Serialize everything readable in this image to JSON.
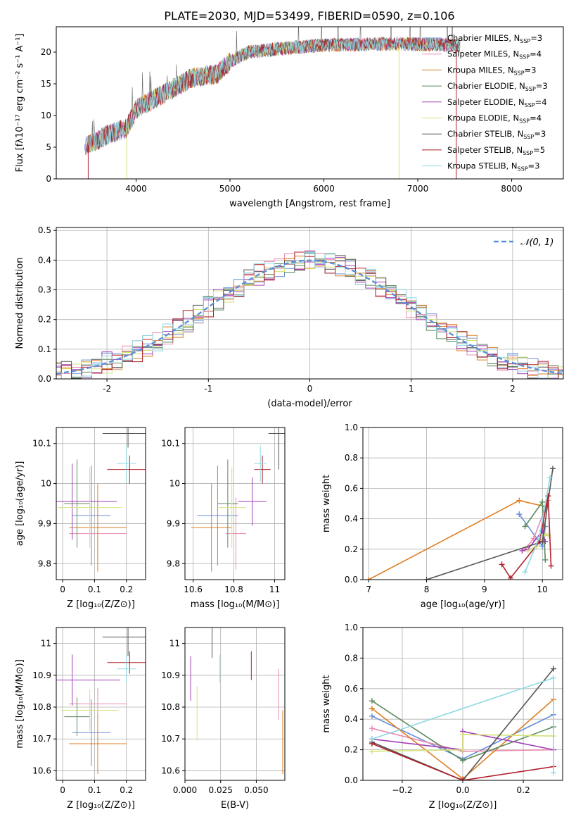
{
  "title": "PLATE=2030, MJD=53499, FIBERID=0590, z=0.106",
  "colors": {
    "Chabrier MILES": "#6a8fd8",
    "Salpeter MILES": "#e98bb0",
    "Kroupa MILES": "#e07e22",
    "Chabrier ELODIE": "#5e8a5e",
    "Salpeter ELODIE": "#a23fb6",
    "Kroupa ELODIE": "#d4e27a",
    "Chabrier STELIB": "#555555",
    "Salpeter STELIB": "#b0202a",
    "Kroupa STELIB": "#8ed9e3"
  },
  "chart_data": [
    {
      "type": "line",
      "panel": "spectrum",
      "xlabel": "wavelength [Angstrom, rest frame]",
      "ylabel": "Flux [fλ10⁻¹⁷ erg cm⁻² s⁻¹ A⁻¹]",
      "xlim": [
        3150,
        8550
      ],
      "ylim": [
        0,
        24
      ],
      "xticks": [
        4000,
        5000,
        6000,
        7000,
        8000
      ],
      "yticks": [
        0,
        5,
        10,
        15,
        20
      ],
      "legend_position": "top-right",
      "legend": [
        {
          "label": "Chabrier MILES, N",
          "sub": "SSP",
          "n": "=3"
        },
        {
          "label": "Salpeter MILES, N",
          "sub": "SSP",
          "n": "=4"
        },
        {
          "label": "Kroupa MILES, N",
          "sub": "SSP",
          "n": "=3"
        },
        {
          "label": "Chabrier ELODIE, N",
          "sub": "SSP",
          "n": "=3"
        },
        {
          "label": "Salpeter ELODIE, N",
          "sub": "SSP",
          "n": "=4"
        },
        {
          "label": "Kroupa ELODIE, N",
          "sub": "SSP",
          "n": "=4"
        },
        {
          "label": "Chabrier STELIB, N",
          "sub": "SSP",
          "n": "=3"
        },
        {
          "label": "Salpeter STELIB, N",
          "sub": "SSP",
          "n": "=5"
        },
        {
          "label": "Kroupa STELIB, N",
          "sub": "SSP",
          "n": "=3"
        }
      ],
      "model_anchor": {
        "x": [
          3450,
          3700,
          3900,
          4000,
          4300,
          4600,
          4860,
          5000,
          5200,
          5500,
          5900,
          6300,
          6700,
          7200,
          7450
        ],
        "y": [
          5.0,
          7.0,
          8.0,
          11.0,
          13.5,
          16.0,
          16.5,
          18.5,
          20.0,
          20.5,
          21.0,
          21.2,
          21.3,
          21.2,
          21.0
        ]
      }
    },
    {
      "type": "line",
      "panel": "residual-histogram",
      "xlabel": "(data-model)/error",
      "ylabel": "Normed distribution",
      "xlim": [
        -2.5,
        2.5
      ],
      "ylim": [
        0,
        0.51
      ],
      "xticks": [
        -2,
        -1,
        0,
        1,
        2
      ],
      "yticks": [
        0.0,
        0.1,
        0.2,
        0.3,
        0.4,
        0.5
      ],
      "grid": true,
      "legend_position": "top-right",
      "legend": "𝒩(0, 1)",
      "bin_width": 0.1
    },
    {
      "type": "scatter",
      "panel": "age-vs-Z",
      "xlabel": "Z [log₁₀(Z/Z⊙)]",
      "ylabel": "age  [log₁₀(age/yr)]",
      "xlim": [
        -0.02,
        0.26
      ],
      "ylim": [
        9.76,
        10.14
      ],
      "xticks": [
        0.0,
        0.1,
        0.2
      ],
      "yticks": [
        9.8,
        9.9,
        10.0,
        10.1
      ],
      "grid": true,
      "points": [
        {
          "model": "Chabrier MILES",
          "x": 0.09,
          "xerr": 0.06,
          "y": 9.92,
          "yerr": 0.125
        },
        {
          "model": "Salpeter MILES",
          "x": 0.11,
          "xerr": 0.09,
          "y": 9.875,
          "yerr": 0.08
        },
        {
          "model": "Kroupa MILES",
          "x": 0.11,
          "xerr": 0.09,
          "y": 9.89,
          "yerr": 0.11
        },
        {
          "model": "Chabrier ELODIE",
          "x": 0.045,
          "xerr": 0.04,
          "y": 9.95,
          "yerr": 0.11
        },
        {
          "model": "Salpeter ELODIE",
          "x": 0.03,
          "xerr": 0.14,
          "y": 9.955,
          "yerr": 0.095
        },
        {
          "model": "Kroupa ELODIE",
          "x": 0.085,
          "xerr": 0.1,
          "y": 9.94,
          "yerr": 0.1
        },
        {
          "model": "Chabrier STELIB",
          "x": 0.205,
          "xerr": 0.08,
          "y": 10.125,
          "yerr": 0.035
        },
        {
          "model": "Salpeter STELIB",
          "x": 0.21,
          "xerr": 0.07,
          "y": 10.035,
          "yerr": 0.035
        },
        {
          "model": "Kroupa STELIB",
          "x": 0.2,
          "xerr": 0.03,
          "y": 10.05,
          "yerr": 0.045
        }
      ]
    },
    {
      "type": "scatter",
      "panel": "age-vs-mass",
      "xlabel": "mass [log₁₀(M/M⊙)]",
      "ylabel": "",
      "xlim": [
        10.56,
        11.05
      ],
      "ylim": [
        9.76,
        10.14
      ],
      "xticks": [
        10.6,
        10.8,
        11.0
      ],
      "yticks": [
        9.8,
        9.9,
        10.0,
        10.1
      ],
      "grid": true,
      "points": [
        {
          "model": "Chabrier MILES",
          "x": 10.72,
          "xerr": 0.1,
          "y": 9.92,
          "yerr": 0.125
        },
        {
          "model": "Salpeter MILES",
          "x": 10.81,
          "xerr": 0.05,
          "y": 9.875,
          "yerr": 0.09
        },
        {
          "model": "Kroupa MILES",
          "x": 10.69,
          "xerr": 0.1,
          "y": 9.89,
          "yerr": 0.11
        },
        {
          "model": "Chabrier ELODIE",
          "x": 10.77,
          "xerr": 0.05,
          "y": 9.95,
          "yerr": 0.11
        },
        {
          "model": "Salpeter ELODIE",
          "x": 10.89,
          "xerr": 0.07,
          "y": 9.955,
          "yerr": 0.06
        },
        {
          "model": "Kroupa ELODIE",
          "x": 10.79,
          "xerr": 0.07,
          "y": 9.94,
          "yerr": 0.1
        },
        {
          "model": "Chabrier STELIB",
          "x": 11.02,
          "xerr": 0.05,
          "y": 10.125,
          "yerr": 0.09
        },
        {
          "model": "Salpeter STELIB",
          "x": 10.94,
          "xerr": 0.04,
          "y": 10.035,
          "yerr": 0.035
        },
        {
          "model": "Kroupa STELIB",
          "x": 10.93,
          "xerr": 0.03,
          "y": 10.05,
          "yerr": 0.045
        }
      ]
    },
    {
      "type": "line",
      "panel": "mass-weight-vs-age",
      "xlabel": "age  [log₁₀(age/yr)]",
      "ylabel": "mass weight",
      "xlim": [
        6.9,
        10.35
      ],
      "ylim": [
        0,
        1
      ],
      "xticks": [
        7,
        8,
        9,
        10
      ],
      "yticks": [
        0.0,
        0.2,
        0.4,
        0.6,
        0.8,
        1.0
      ],
      "grid": true,
      "series": [
        {
          "model": "Chabrier MILES",
          "x": [
            9.6,
            10.0,
            10.05
          ],
          "y": [
            0.43,
            0.22,
            0.35
          ]
        },
        {
          "model": "Salpeter MILES",
          "x": [
            9.7,
            9.85,
            10.1
          ],
          "y": [
            0.2,
            0.27,
            0.52
          ]
        },
        {
          "model": "Kroupa MILES",
          "x": [
            7.0,
            9.6,
            10.05
          ],
          "y": [
            0.0,
            0.52,
            0.48
          ]
        },
        {
          "model": "Chabrier ELODIE",
          "x": [
            9.7,
            10.0,
            10.05
          ],
          "y": [
            0.35,
            0.51,
            0.13
          ]
        },
        {
          "model": "Salpeter ELODIE",
          "x": [
            9.65,
            9.75,
            10.0,
            10.05
          ],
          "y": [
            0.19,
            0.2,
            0.32,
            0.25
          ]
        },
        {
          "model": "Kroupa ELODIE",
          "x": [
            9.75,
            9.9,
            10.05,
            10.1
          ],
          "y": [
            0.19,
            0.22,
            0.3,
            0.29
          ]
        },
        {
          "model": "Chabrier STELIB",
          "x": [
            8.0,
            10.0,
            10.18
          ],
          "y": [
            0.0,
            0.25,
            0.73
          ]
        },
        {
          "model": "Salpeter STELIB",
          "x": [
            9.3,
            9.45,
            9.95,
            10.1,
            10.15
          ],
          "y": [
            0.1,
            0.01,
            0.25,
            0.55,
            0.09
          ]
        },
        {
          "model": "Kroupa STELIB",
          "x": [
            9.7,
            9.95,
            10.13
          ],
          "y": [
            0.05,
            0.28,
            0.67
          ]
        }
      ]
    },
    {
      "type": "scatter",
      "panel": "mass-vs-Z",
      "xlabel": "Z [log₁₀(Z/Z⊙)]",
      "ylabel": "mass [log₁₀(M/M⊙)]",
      "xlim": [
        -0.02,
        0.26
      ],
      "ylim": [
        10.57,
        11.05
      ],
      "xticks": [
        0.0,
        0.1,
        0.2
      ],
      "yticks": [
        10.6,
        10.7,
        10.8,
        10.9,
        11.0
      ],
      "grid": true,
      "points": [
        {
          "model": "Chabrier MILES",
          "x": 0.09,
          "xerr": 0.06,
          "y": 10.72,
          "yerr": 0.105
        },
        {
          "model": "Salpeter MILES",
          "x": 0.11,
          "xerr": 0.09,
          "y": 10.81,
          "yerr": 0.05
        },
        {
          "model": "Kroupa MILES",
          "x": 0.11,
          "xerr": 0.09,
          "y": 10.685,
          "yerr": 0.095
        },
        {
          "model": "Chabrier ELODIE",
          "x": 0.045,
          "xerr": 0.04,
          "y": 10.77,
          "yerr": 0.06
        },
        {
          "model": "Salpeter ELODIE",
          "x": 0.03,
          "xerr": 0.15,
          "y": 10.885,
          "yerr": 0.08
        },
        {
          "model": "Kroupa ELODIE",
          "x": 0.085,
          "xerr": 0.09,
          "y": 10.79,
          "yerr": 0.065
        },
        {
          "model": "Chabrier STELIB",
          "x": 0.205,
          "xerr": 0.08,
          "y": 11.02,
          "yerr": 0.06
        },
        {
          "model": "Salpeter STELIB",
          "x": 0.21,
          "xerr": 0.07,
          "y": 10.94,
          "yerr": 0.035
        },
        {
          "model": "Kroupa STELIB",
          "x": 0.2,
          "xerr": 0.03,
          "y": 10.92,
          "yerr": 0.045
        }
      ]
    },
    {
      "type": "scatter",
      "panel": "mass-vs-EBV",
      "xlabel": "E(B-V)",
      "ylabel": "",
      "xlim": [
        0.0,
        0.07
      ],
      "ylim": [
        10.57,
        11.05
      ],
      "xticks": [
        0.0,
        0.025,
        0.05
      ],
      "xticklabels": [
        "0.000",
        "0.025",
        "0.050"
      ],
      "yticks": [
        10.6,
        10.7,
        10.8,
        10.9,
        11.0
      ],
      "grid": true,
      "points": [
        {
          "model": "Salpeter MILES",
          "x": 0.0655,
          "y": 10.84,
          "yerr": 0.08
        },
        {
          "model": "Kroupa MILES",
          "x": 0.0685,
          "y": 10.69,
          "yerr": 0.1
        },
        {
          "model": "Salpeter ELODIE",
          "x": 0.004,
          "y": 10.89,
          "yerr": 0.07
        },
        {
          "model": "Kroupa ELODIE",
          "x": 0.0085,
          "y": 10.78,
          "yerr": 0.085
        },
        {
          "model": "Chabrier STELIB",
          "x": 0.019,
          "y": 11.04,
          "yerr": 0.085
        },
        {
          "model": "Salpeter STELIB",
          "x": 0.0465,
          "y": 10.93,
          "yerr": 0.045
        },
        {
          "model": "Kroupa STELIB",
          "x": 0.0245,
          "y": 10.92,
          "yerr": 0.045
        }
      ]
    },
    {
      "type": "line",
      "panel": "mass-weight-vs-Z",
      "xlabel": "Z [log₁₀(Z/Z⊙)]",
      "ylabel": "mass weight",
      "xlim": [
        -0.33,
        0.33
      ],
      "ylim": [
        0,
        1
      ],
      "xticks": [
        -0.2,
        0.0,
        0.2
      ],
      "xticklabels": [
        "−0.2",
        "0.0",
        "0.2"
      ],
      "yticks": [
        0.0,
        0.2,
        0.4,
        0.6,
        0.8,
        1.0
      ],
      "grid": true,
      "series": [
        {
          "model": "Chabrier MILES",
          "x": [
            -0.3,
            0.0,
            0.3
          ],
          "y": [
            0.42,
            0.14,
            0.43
          ]
        },
        {
          "model": "Salpeter MILES",
          "x": [
            -0.3,
            0.0,
            0.3
          ],
          "y": [
            0.34,
            0.19,
            0.2
          ]
        },
        {
          "model": "Kroupa MILES",
          "x": [
            -0.3,
            0.0,
            0.3
          ],
          "y": [
            0.47,
            0.01,
            0.53
          ]
        },
        {
          "model": "Chabrier ELODIE",
          "x": [
            -0.3,
            0.0,
            0.3
          ],
          "y": [
            0.52,
            0.13,
            0.35
          ]
        },
        {
          "model": "Salpeter ELODIE",
          "x": [
            -0.3,
            0.0,
            0.0,
            0.3
          ],
          "y": [
            0.27,
            0.2,
            0.32,
            0.2
          ]
        },
        {
          "model": "Kroupa ELODIE",
          "x": [
            -0.3,
            0.0,
            0.0,
            0.3
          ],
          "y": [
            0.19,
            0.2,
            0.3,
            0.29
          ]
        },
        {
          "model": "Chabrier STELIB",
          "x": [
            -0.3,
            0.0,
            0.3
          ],
          "y": [
            0.25,
            0.0,
            0.73
          ]
        },
        {
          "model": "Salpeter STELIB",
          "x": [
            -0.3,
            0.0,
            0.3
          ],
          "y": [
            0.24,
            0.0,
            0.09
          ]
        },
        {
          "model": "Kroupa STELIB",
          "x": [
            -0.3,
            0.3,
            0.3
          ],
          "y": [
            0.27,
            0.67,
            0.05
          ]
        }
      ]
    }
  ]
}
